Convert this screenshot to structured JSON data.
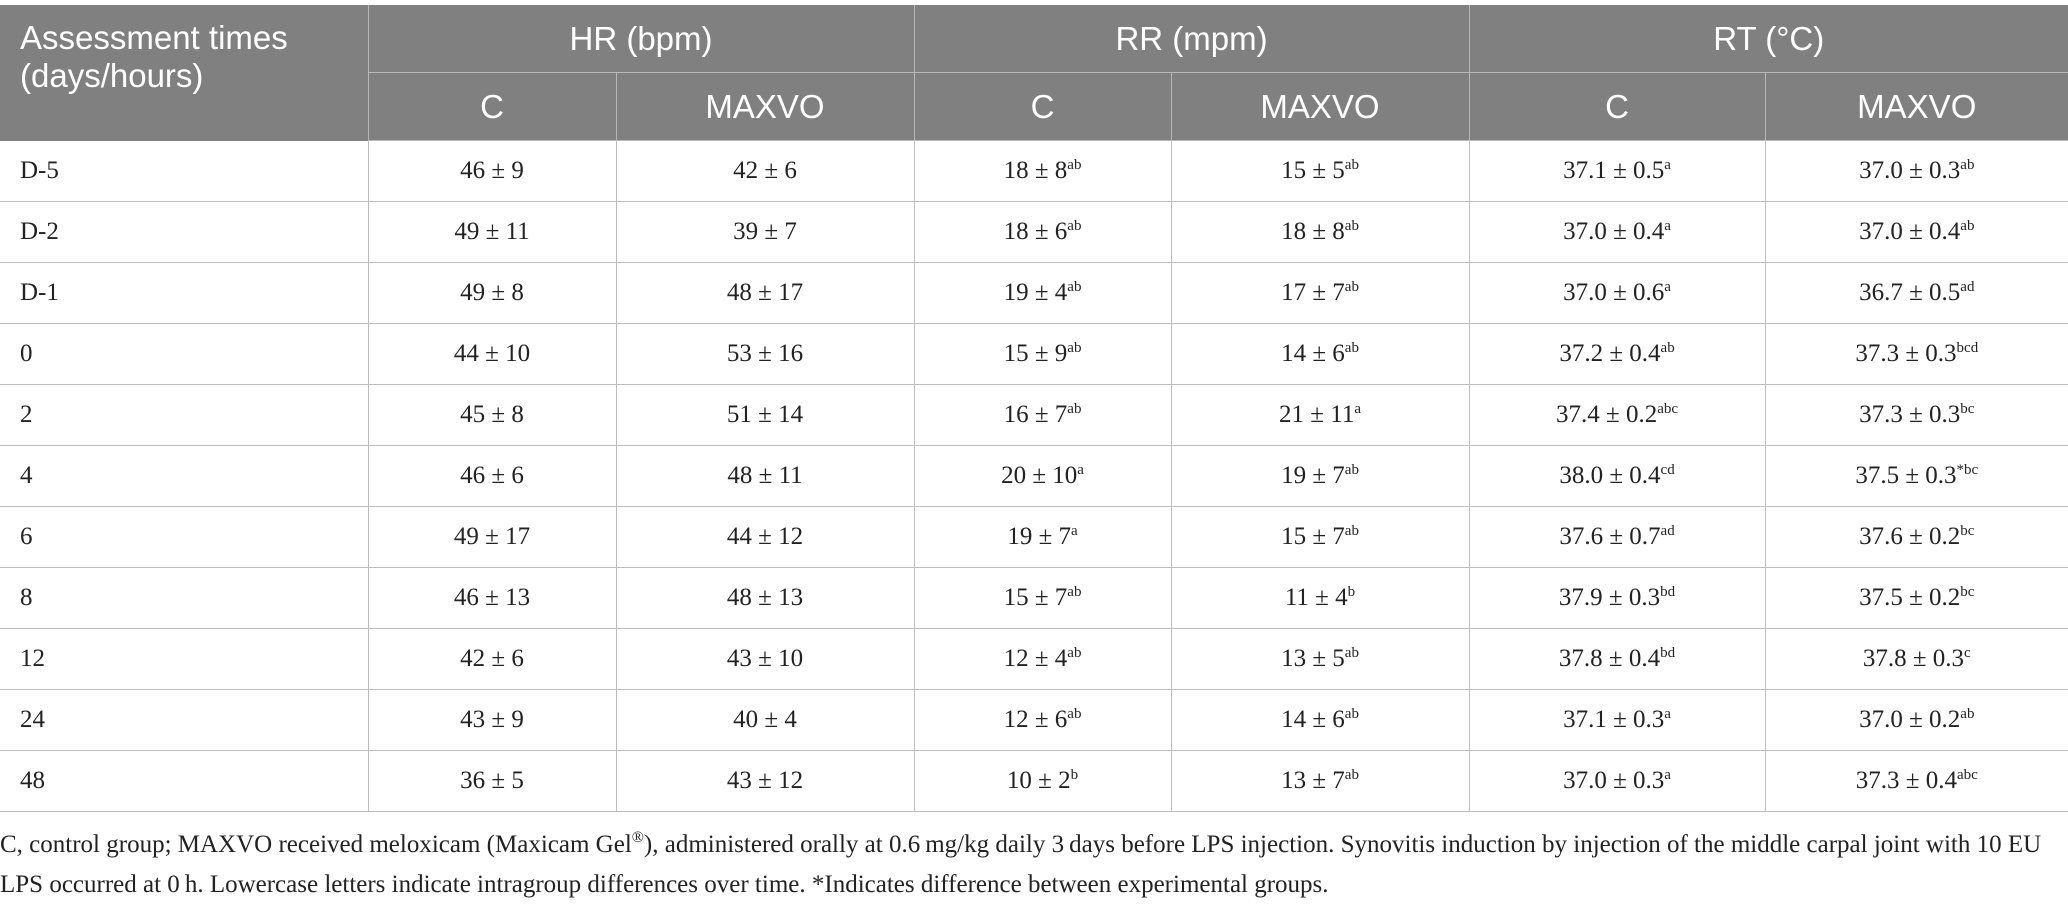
{
  "table": {
    "headers": {
      "stub": "Assessment times (days/hours)",
      "groups": [
        "HR (bpm)",
        "RR (mpm)",
        "RT (°C)"
      ],
      "subcolumns": [
        "C",
        "MAXVO",
        "C",
        "MAXVO",
        "C",
        "MAXVO"
      ]
    },
    "rows": [
      {
        "time": "D-5",
        "cells": [
          {
            "v": "46 ± 9",
            "s": ""
          },
          {
            "v": "42 ± 6",
            "s": ""
          },
          {
            "v": "18 ± 8",
            "s": "ab"
          },
          {
            "v": "15 ± 5",
            "s": "ab"
          },
          {
            "v": "37.1 ± 0.5",
            "s": "a"
          },
          {
            "v": "37.0 ± 0.3",
            "s": "ab"
          }
        ]
      },
      {
        "time": "D-2",
        "cells": [
          {
            "v": "49 ± 11",
            "s": ""
          },
          {
            "v": "39 ± 7",
            "s": ""
          },
          {
            "v": "18 ± 6",
            "s": "ab"
          },
          {
            "v": "18 ± 8",
            "s": "ab"
          },
          {
            "v": "37.0 ± 0.4",
            "s": "a"
          },
          {
            "v": "37.0 ± 0.4",
            "s": "ab"
          }
        ]
      },
      {
        "time": "D-1",
        "cells": [
          {
            "v": "49 ± 8",
            "s": ""
          },
          {
            "v": "48 ± 17",
            "s": ""
          },
          {
            "v": "19 ± 4",
            "s": "ab"
          },
          {
            "v": "17 ± 7",
            "s": "ab"
          },
          {
            "v": "37.0 ± 0.6",
            "s": "a"
          },
          {
            "v": "36.7 ± 0.5",
            "s": "ad"
          }
        ]
      },
      {
        "time": "0",
        "cells": [
          {
            "v": "44 ± 10",
            "s": ""
          },
          {
            "v": "53 ± 16",
            "s": ""
          },
          {
            "v": "15 ± 9",
            "s": "ab"
          },
          {
            "v": "14 ± 6",
            "s": "ab"
          },
          {
            "v": "37.2 ± 0.4",
            "s": "ab"
          },
          {
            "v": "37.3 ± 0.3",
            "s": "bcd"
          }
        ]
      },
      {
        "time": "2",
        "cells": [
          {
            "v": "45 ± 8",
            "s": ""
          },
          {
            "v": "51 ± 14",
            "s": ""
          },
          {
            "v": "16 ± 7",
            "s": "ab"
          },
          {
            "v": "21 ± 11",
            "s": "a"
          },
          {
            "v": "37.4 ± 0.2",
            "s": "abc"
          },
          {
            "v": "37.3 ± 0.3",
            "s": "bc"
          }
        ]
      },
      {
        "time": "4",
        "cells": [
          {
            "v": "46 ± 6",
            "s": ""
          },
          {
            "v": "48 ± 11",
            "s": ""
          },
          {
            "v": "20 ± 10",
            "s": "a"
          },
          {
            "v": "19 ± 7",
            "s": "ab"
          },
          {
            "v": "38.0 ± 0.4",
            "s": "cd"
          },
          {
            "v": "37.5 ± 0.3",
            "s": "*bc"
          }
        ]
      },
      {
        "time": "6",
        "cells": [
          {
            "v": "49 ± 17",
            "s": ""
          },
          {
            "v": "44 ± 12",
            "s": ""
          },
          {
            "v": "19 ± 7",
            "s": "a"
          },
          {
            "v": "15 ± 7",
            "s": "ab"
          },
          {
            "v": "37.6 ± 0.7",
            "s": "ad"
          },
          {
            "v": "37.6 ± 0.2",
            "s": "bc"
          }
        ]
      },
      {
        "time": "8",
        "cells": [
          {
            "v": "46 ± 13",
            "s": ""
          },
          {
            "v": "48 ± 13",
            "s": ""
          },
          {
            "v": "15 ± 7",
            "s": "ab"
          },
          {
            "v": "11 ± 4",
            "s": "b"
          },
          {
            "v": "37.9 ± 0.3",
            "s": "bd"
          },
          {
            "v": "37.5 ± 0.2",
            "s": "bc"
          }
        ]
      },
      {
        "time": "12",
        "cells": [
          {
            "v": "42 ± 6",
            "s": ""
          },
          {
            "v": "43 ± 10",
            "s": ""
          },
          {
            "v": "12 ± 4",
            "s": "ab"
          },
          {
            "v": "13 ± 5",
            "s": "ab"
          },
          {
            "v": "37.8 ± 0.4",
            "s": "bd"
          },
          {
            "v": "37.8 ± 0.3",
            "s": "c"
          }
        ]
      },
      {
        "time": "24",
        "cells": [
          {
            "v": "43 ± 9",
            "s": ""
          },
          {
            "v": "40 ± 4",
            "s": ""
          },
          {
            "v": "12 ± 6",
            "s": "ab"
          },
          {
            "v": "14 ± 6",
            "s": "ab"
          },
          {
            "v": "37.1 ± 0.3",
            "s": "a"
          },
          {
            "v": "37.0 ± 0.2",
            "s": "ab"
          }
        ]
      },
      {
        "time": "48",
        "cells": [
          {
            "v": "36 ± 5",
            "s": ""
          },
          {
            "v": "43 ± 12",
            "s": ""
          },
          {
            "v": "10 ± 2",
            "s": "b"
          },
          {
            "v": "13 ± 7",
            "s": "ab"
          },
          {
            "v": "37.0 ± 0.3",
            "s": "a"
          },
          {
            "v": "37.3 ± 0.4",
            "s": "abc"
          }
        ]
      }
    ]
  },
  "footnote": {
    "part1": "C, control group; MAXVO received meloxicam (Maxicam Gel",
    "reg_mark": "®",
    "part2": "), administered orally at 0.6 mg/kg daily 3 days before LPS injection. Synovitis induction by injection of the middle carpal joint with 10 EU LPS occurred at 0 h. Lowercase letters indicate intragroup differences over time. *Indicates difference between experimental groups."
  }
}
